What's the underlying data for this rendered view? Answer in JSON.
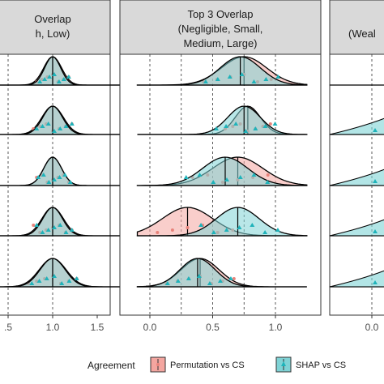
{
  "colors": {
    "permutation_fill": "#F4A6A0",
    "shap_fill": "#7FD3D6",
    "permutation_point": "#E8837B",
    "shap_point": "#1FB3BA",
    "strip_bg": "#D9D9D9",
    "panel_border": "#333333"
  },
  "chart_data": [
    {
      "type": "ridgeline",
      "panel": "left",
      "title_lines": [
        "Overlap",
        "h, Low)"
      ],
      "x_ticks": [
        0.5,
        1.0,
        1.5
      ],
      "x_tick_labels": [
        ".5",
        "1.0",
        "1.5"
      ],
      "xlim": [
        0.5,
        1.5
      ],
      "vlines": [
        0.5,
        1.0
      ],
      "series": [
        {
          "name": "Permutation vs CS",
          "ridges": [
            {
              "peak": 1.0,
              "sd": 0.1
            },
            {
              "peak": 1.0,
              "sd": 0.12
            },
            {
              "peak": 1.0,
              "sd": 0.1
            },
            {
              "peak": 1.0,
              "sd": 0.12
            },
            {
              "peak": 1.0,
              "sd": 0.15
            }
          ]
        },
        {
          "name": "SHAP vs CS",
          "ridges": [
            {
              "peak": 1.0,
              "sd": 0.09
            },
            {
              "peak": 1.0,
              "sd": 0.11
            },
            {
              "peak": 1.0,
              "sd": 0.1
            },
            {
              "peak": 1.0,
              "sd": 0.11
            },
            {
              "peak": 1.0,
              "sd": 0.14
            }
          ]
        }
      ]
    },
    {
      "type": "ridgeline",
      "panel": "middle",
      "title_lines": [
        "Top 3 Overlap",
        "(Negligible, Small,",
        "Medium, Large)"
      ],
      "x_ticks": [
        0.0,
        0.5,
        1.0
      ],
      "x_tick_labels": [
        "0.0",
        "0.5",
        "1.0"
      ],
      "xlim": [
        0.0,
        1.0
      ],
      "vlines": [
        0.0,
        0.25,
        0.5,
        0.75,
        1.0
      ],
      "series": [
        {
          "name": "Permutation vs CS",
          "ridges": [
            {
              "peak": 0.75,
              "sd": 0.18
            },
            {
              "peak": 0.78,
              "sd": 0.1
            },
            {
              "peak": 0.7,
              "sd": 0.2
            },
            {
              "peak": 0.3,
              "sd": 0.2
            },
            {
              "peak": 0.4,
              "sd": 0.15
            }
          ]
        },
        {
          "name": "SHAP vs CS",
          "ridges": [
            {
              "peak": 0.72,
              "sd": 0.16
            },
            {
              "peak": 0.75,
              "sd": 0.13
            },
            {
              "peak": 0.6,
              "sd": 0.18
            },
            {
              "peak": 0.7,
              "sd": 0.17
            },
            {
              "peak": 0.38,
              "sd": 0.14
            }
          ]
        }
      ]
    },
    {
      "type": "ridgeline",
      "panel": "right",
      "title_lines": [
        "(Weal"
      ],
      "x_ticks": [
        0.0
      ],
      "x_tick_labels": [
        "0.0"
      ],
      "xlim": [
        0.0,
        1.0
      ],
      "vlines": [
        0.0
      ]
    }
  ],
  "legend": {
    "title": "Agreement",
    "items": [
      "Permutation vs CS",
      "SHAP vs CS"
    ]
  }
}
